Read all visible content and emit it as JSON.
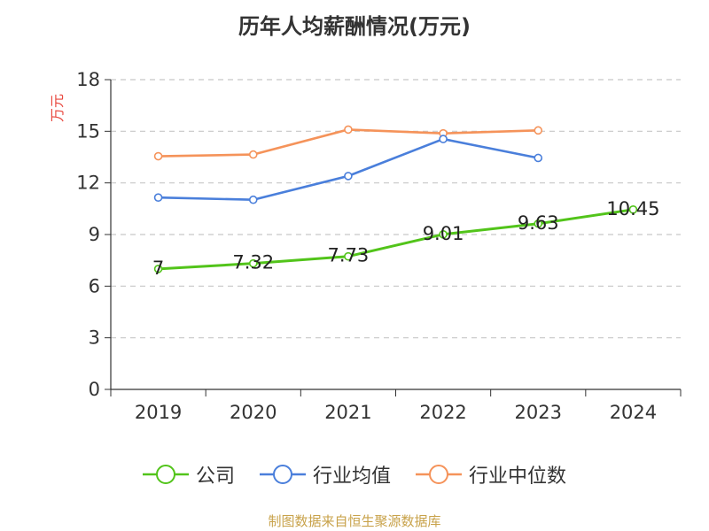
{
  "chart_data": {
    "type": "line",
    "title": "历年人均薪酬情况(万元)",
    "ylabel": "万元",
    "xlabel": "",
    "categories": [
      "2019",
      "2020",
      "2021",
      "2022",
      "2023",
      "2024"
    ],
    "ylim": [
      0,
      18
    ],
    "yticks": [
      0,
      3,
      6,
      9,
      12,
      15,
      18
    ],
    "grid": true,
    "legend_position": "bottom",
    "series": [
      {
        "name": "公司",
        "color": "#52c41a",
        "values": [
          7,
          7.32,
          7.73,
          9.01,
          9.63,
          10.45
        ],
        "labels": [
          "7",
          "7.32",
          "7.73",
          "9.01",
          "9.63",
          "10.45"
        ]
      },
      {
        "name": "行业均值",
        "color": "#4a7fdb",
        "values": [
          11.15,
          11.02,
          12.4,
          14.55,
          13.45,
          null
        ]
      },
      {
        "name": "行业中位数",
        "color": "#f5935a",
        "values": [
          13.55,
          13.65,
          15.1,
          14.88,
          15.05,
          null
        ]
      }
    ]
  },
  "source_note": "制图数据来自恒生聚源数据库"
}
